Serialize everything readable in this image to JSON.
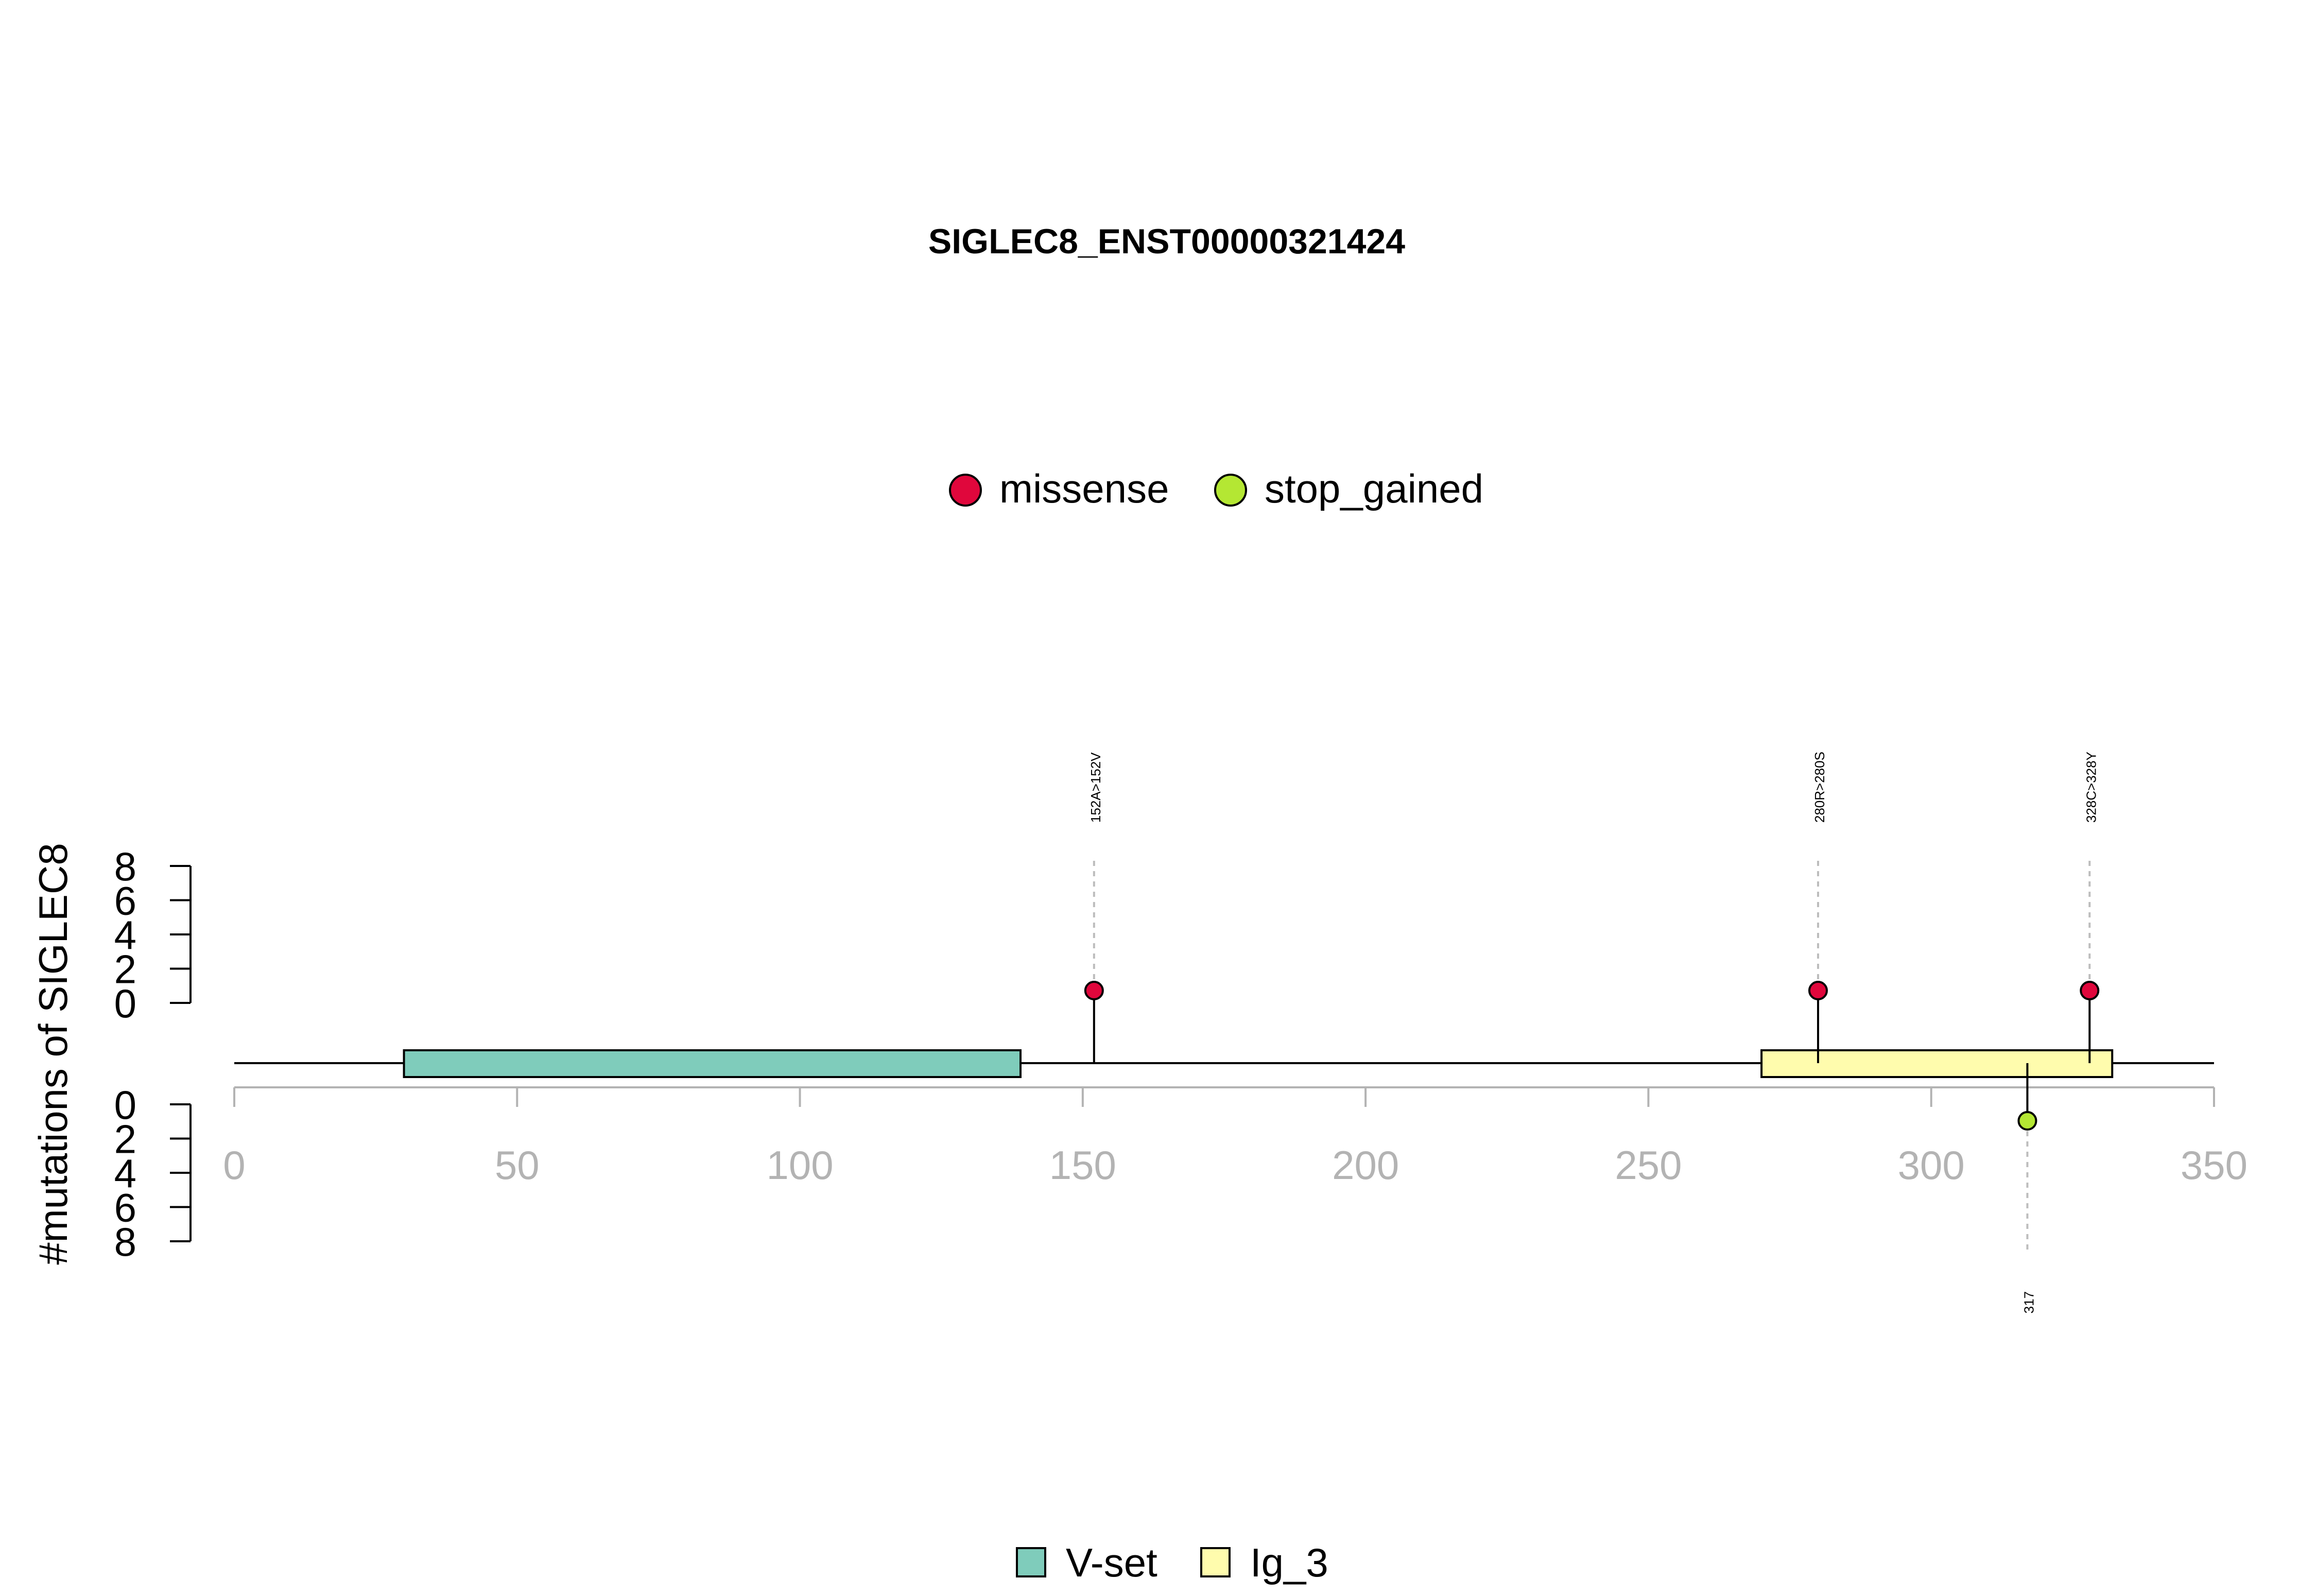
{
  "title": "SIGLEC8_ENST00000321424",
  "colors": {
    "missense": "#e0073c",
    "stop_gained": "#b4e733",
    "V-set": "#7fccbb",
    "Ig_3": "#fffcad",
    "axis_gray": "#b3b3b3",
    "guide_gray": "#bdbdbd"
  },
  "mutation_legend": [
    {
      "label": "missense",
      "color_key": "missense"
    },
    {
      "label": "stop_gained",
      "color_key": "stop_gained"
    }
  ],
  "domain_legend": [
    {
      "label": "V-set",
      "color_key": "V-set"
    },
    {
      "label": "Ig_3",
      "color_key": "Ig_3"
    }
  ],
  "chart_data": {
    "type": "lollipop",
    "title": "SIGLEC8_ENST00000321424",
    "ylabel": "#mutations of SIGLEC8",
    "x_range": [
      0,
      350
    ],
    "x_ticks": [
      0,
      50,
      100,
      150,
      200,
      250,
      300,
      350
    ],
    "protein_length": 350,
    "y_range_top": [
      0,
      8
    ],
    "y_ticks_top": [
      0,
      2,
      4,
      6,
      8
    ],
    "y_range_bottom": [
      0,
      8
    ],
    "y_ticks_bottom": [
      0,
      2,
      4,
      6,
      8
    ],
    "domains": [
      {
        "name": "V-set",
        "start": 30,
        "end": 139
      },
      {
        "name": "Ig_3",
        "start": 270,
        "end": 332
      }
    ],
    "mutations": [
      {
        "position": 152,
        "label": "152A>152V",
        "type": "missense",
        "count": 1,
        "side": "top"
      },
      {
        "position": 280,
        "label": "280R>280S",
        "type": "missense",
        "count": 1,
        "side": "top"
      },
      {
        "position": 328,
        "label": "328C>328Y",
        "type": "missense",
        "count": 1,
        "side": "top"
      },
      {
        "position": 317,
        "label": "317",
        "type": "stop_gained",
        "count": 1,
        "side": "bottom"
      }
    ]
  }
}
